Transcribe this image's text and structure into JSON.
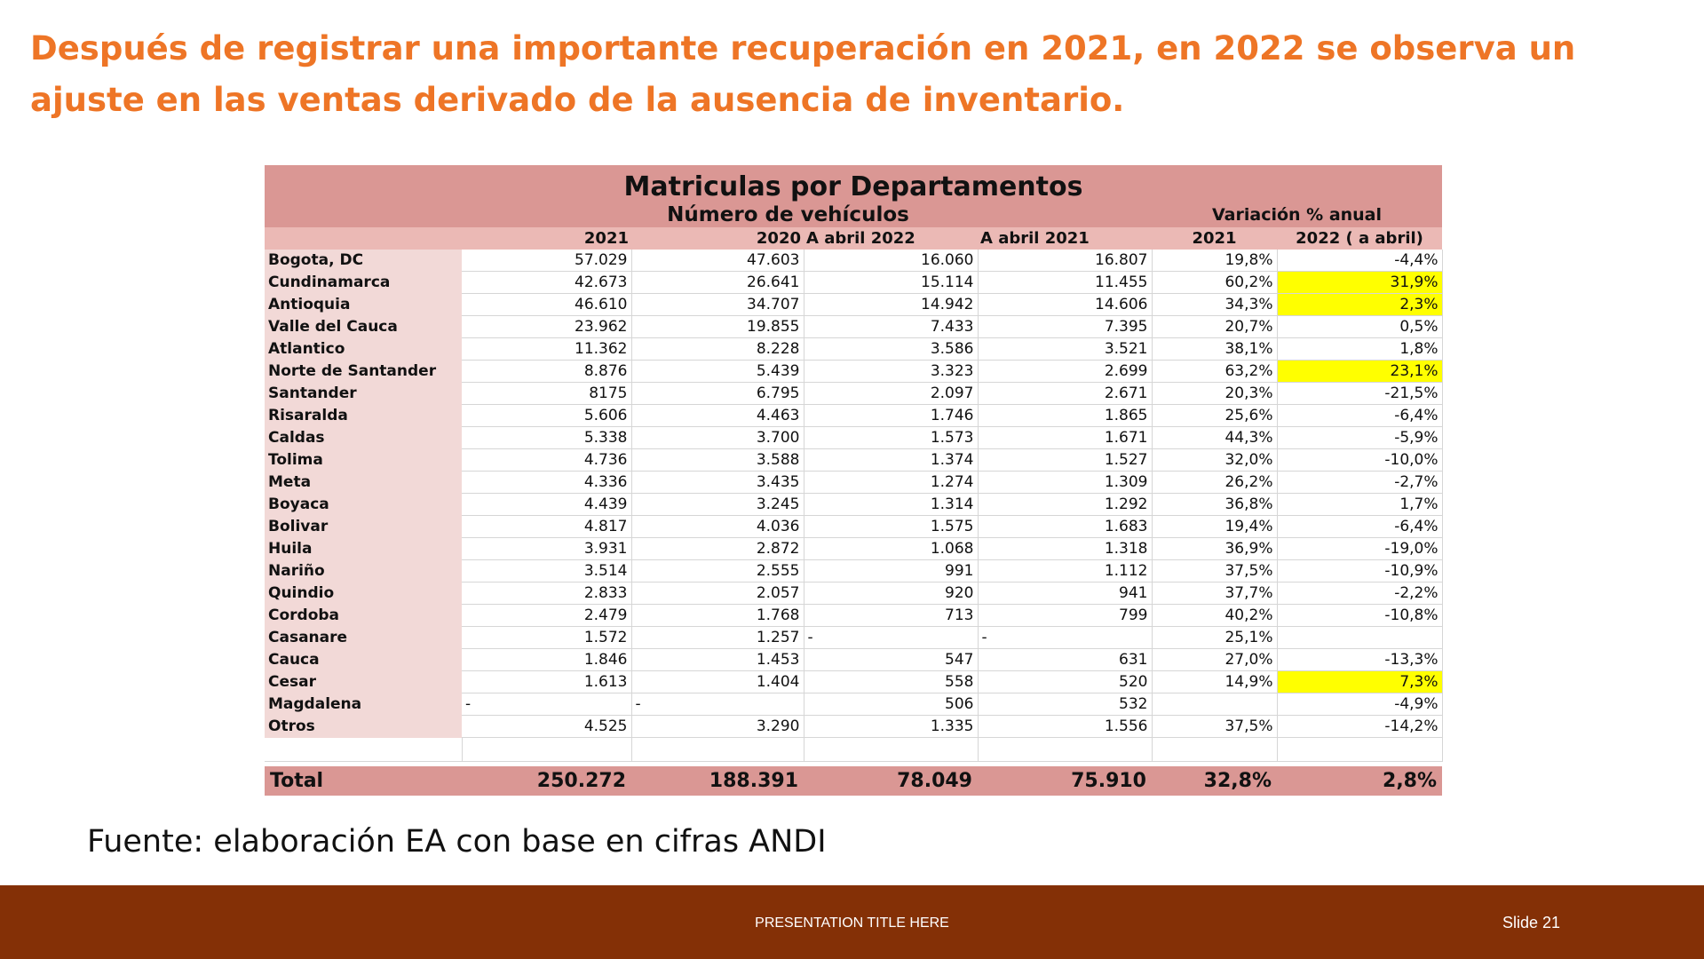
{
  "slide": {
    "headline": "Después de registrar una importante recuperación en 2021, en 2022 se observa un ajuste en las ventas derivado de la ausencia de inventario.",
    "source": "Fuente: elaboración EA con base en cifras ANDI",
    "footer_title": "PRESENTATION TITLE HERE",
    "slide_number": "Slide 21"
  },
  "table": {
    "title": "Matriculas por Departamentos",
    "subtitle_vehicles": "Número de vehículos",
    "subtitle_variation": "Variación % anual",
    "columns": [
      "2021",
      "2020",
      "A abril 2022",
      "A abril 2021",
      "2021",
      "2022 ( a abril)"
    ],
    "rows": [
      {
        "dept": "Bogota, DC",
        "v2021": "57.029",
        "v2020": "47.603",
        "abr2022": "16.060",
        "abr2021": "16.807",
        "var2021": "19,8%",
        "var2022": "-4,4%"
      },
      {
        "dept": "Cundinamarca",
        "v2021": "42.673",
        "v2020": "26.641",
        "abr2022": "15.114",
        "abr2021": "11.455",
        "var2021": "60,2%",
        "var2022": "31,9%",
        "highlight": true
      },
      {
        "dept": "Antioquia",
        "v2021": "46.610",
        "v2020": "34.707",
        "abr2022": "14.942",
        "abr2021": "14.606",
        "var2021": "34,3%",
        "var2022": "2,3%",
        "highlight": true
      },
      {
        "dept": "Valle del Cauca",
        "v2021": "23.962",
        "v2020": "19.855",
        "abr2022": "7.433",
        "abr2021": "7.395",
        "var2021": "20,7%",
        "var2022": "0,5%"
      },
      {
        "dept": "Atlantico",
        "v2021": "11.362",
        "v2020": "8.228",
        "abr2022": "3.586",
        "abr2021": "3.521",
        "var2021": "38,1%",
        "var2022": "1,8%"
      },
      {
        "dept": "Norte de Santander",
        "v2021": "8.876",
        "v2020": "5.439",
        "abr2022": "3.323",
        "abr2021": "2.699",
        "var2021": "63,2%",
        "var2022": "23,1%",
        "highlight": true
      },
      {
        "dept": "Santander",
        "v2021": "8175",
        "v2020": "6.795",
        "abr2022": "2.097",
        "abr2021": "2.671",
        "var2021": "20,3%",
        "var2022": "-21,5%"
      },
      {
        "dept": "Risaralda",
        "v2021": "5.606",
        "v2020": "4.463",
        "abr2022": "1.746",
        "abr2021": "1.865",
        "var2021": "25,6%",
        "var2022": "-6,4%"
      },
      {
        "dept": "Caldas",
        "v2021": "5.338",
        "v2020": "3.700",
        "abr2022": "1.573",
        "abr2021": "1.671",
        "var2021": "44,3%",
        "var2022": "-5,9%"
      },
      {
        "dept": "Tolima",
        "v2021": "4.736",
        "v2020": "3.588",
        "abr2022": "1.374",
        "abr2021": "1.527",
        "var2021": "32,0%",
        "var2022": "-10,0%"
      },
      {
        "dept": "Meta",
        "v2021": "4.336",
        "v2020": "3.435",
        "abr2022": "1.274",
        "abr2021": "1.309",
        "var2021": "26,2%",
        "var2022": "-2,7%"
      },
      {
        "dept": "Boyaca",
        "v2021": "4.439",
        "v2020": "3.245",
        "abr2022": "1.314",
        "abr2021": "1.292",
        "var2021": "36,8%",
        "var2022": "1,7%"
      },
      {
        "dept": "Bolivar",
        "v2021": "4.817",
        "v2020": "4.036",
        "abr2022": "1.575",
        "abr2021": "1.683",
        "var2021": "19,4%",
        "var2022": "-6,4%"
      },
      {
        "dept": "Huila",
        "v2021": "3.931",
        "v2020": "2.872",
        "abr2022": "1.068",
        "abr2021": "1.318",
        "var2021": "36,9%",
        "var2022": "-19,0%"
      },
      {
        "dept": "Nariño",
        "v2021": "3.514",
        "v2020": "2.555",
        "abr2022": "991",
        "abr2021": "1.112",
        "var2021": "37,5%",
        "var2022": "-10,9%"
      },
      {
        "dept": "Quindio",
        "v2021": "2.833",
        "v2020": "2.057",
        "abr2022": "920",
        "abr2021": "941",
        "var2021": "37,7%",
        "var2022": "-2,2%"
      },
      {
        "dept": "Cordoba",
        "v2021": "2.479",
        "v2020": "1.768",
        "abr2022": "713",
        "abr2021": "799",
        "var2021": "40,2%",
        "var2022": "-10,8%"
      },
      {
        "dept": "Casanare",
        "v2021": "1.572",
        "v2020": "1.257",
        "abr2022": "-",
        "abr2021": "-",
        "var2021": "25,1%",
        "var2022": ""
      },
      {
        "dept": "Cauca",
        "v2021": "1.846",
        "v2020": "1.453",
        "abr2022": "547",
        "abr2021": "631",
        "var2021": "27,0%",
        "var2022": "-13,3%"
      },
      {
        "dept": "Cesar",
        "v2021": "1.613",
        "v2020": "1.404",
        "abr2022": "558",
        "abr2021": "520",
        "var2021": "14,9%",
        "var2022": "7,3%",
        "highlight": true
      },
      {
        "dept": "Magdalena",
        "v2021": "-",
        "v2020": "-",
        "abr2022": "506",
        "abr2021": "532",
        "var2021": "",
        "var2022": "-4,9%"
      },
      {
        "dept": "Otros",
        "v2021": "4.525",
        "v2020": "3.290",
        "abr2022": "1.335",
        "abr2021": "1.556",
        "var2021": "37,5%",
        "var2022": "-14,2%"
      }
    ],
    "total": {
      "label": "Total",
      "v2021": "250.272",
      "v2020": "188.391",
      "abr2022": "78.049",
      "abr2021": "75.910",
      "var2021": "32,8%",
      "var2022": "2,8%"
    },
    "highlight_color": "#ffff00",
    "header_color": "#da9794"
  }
}
